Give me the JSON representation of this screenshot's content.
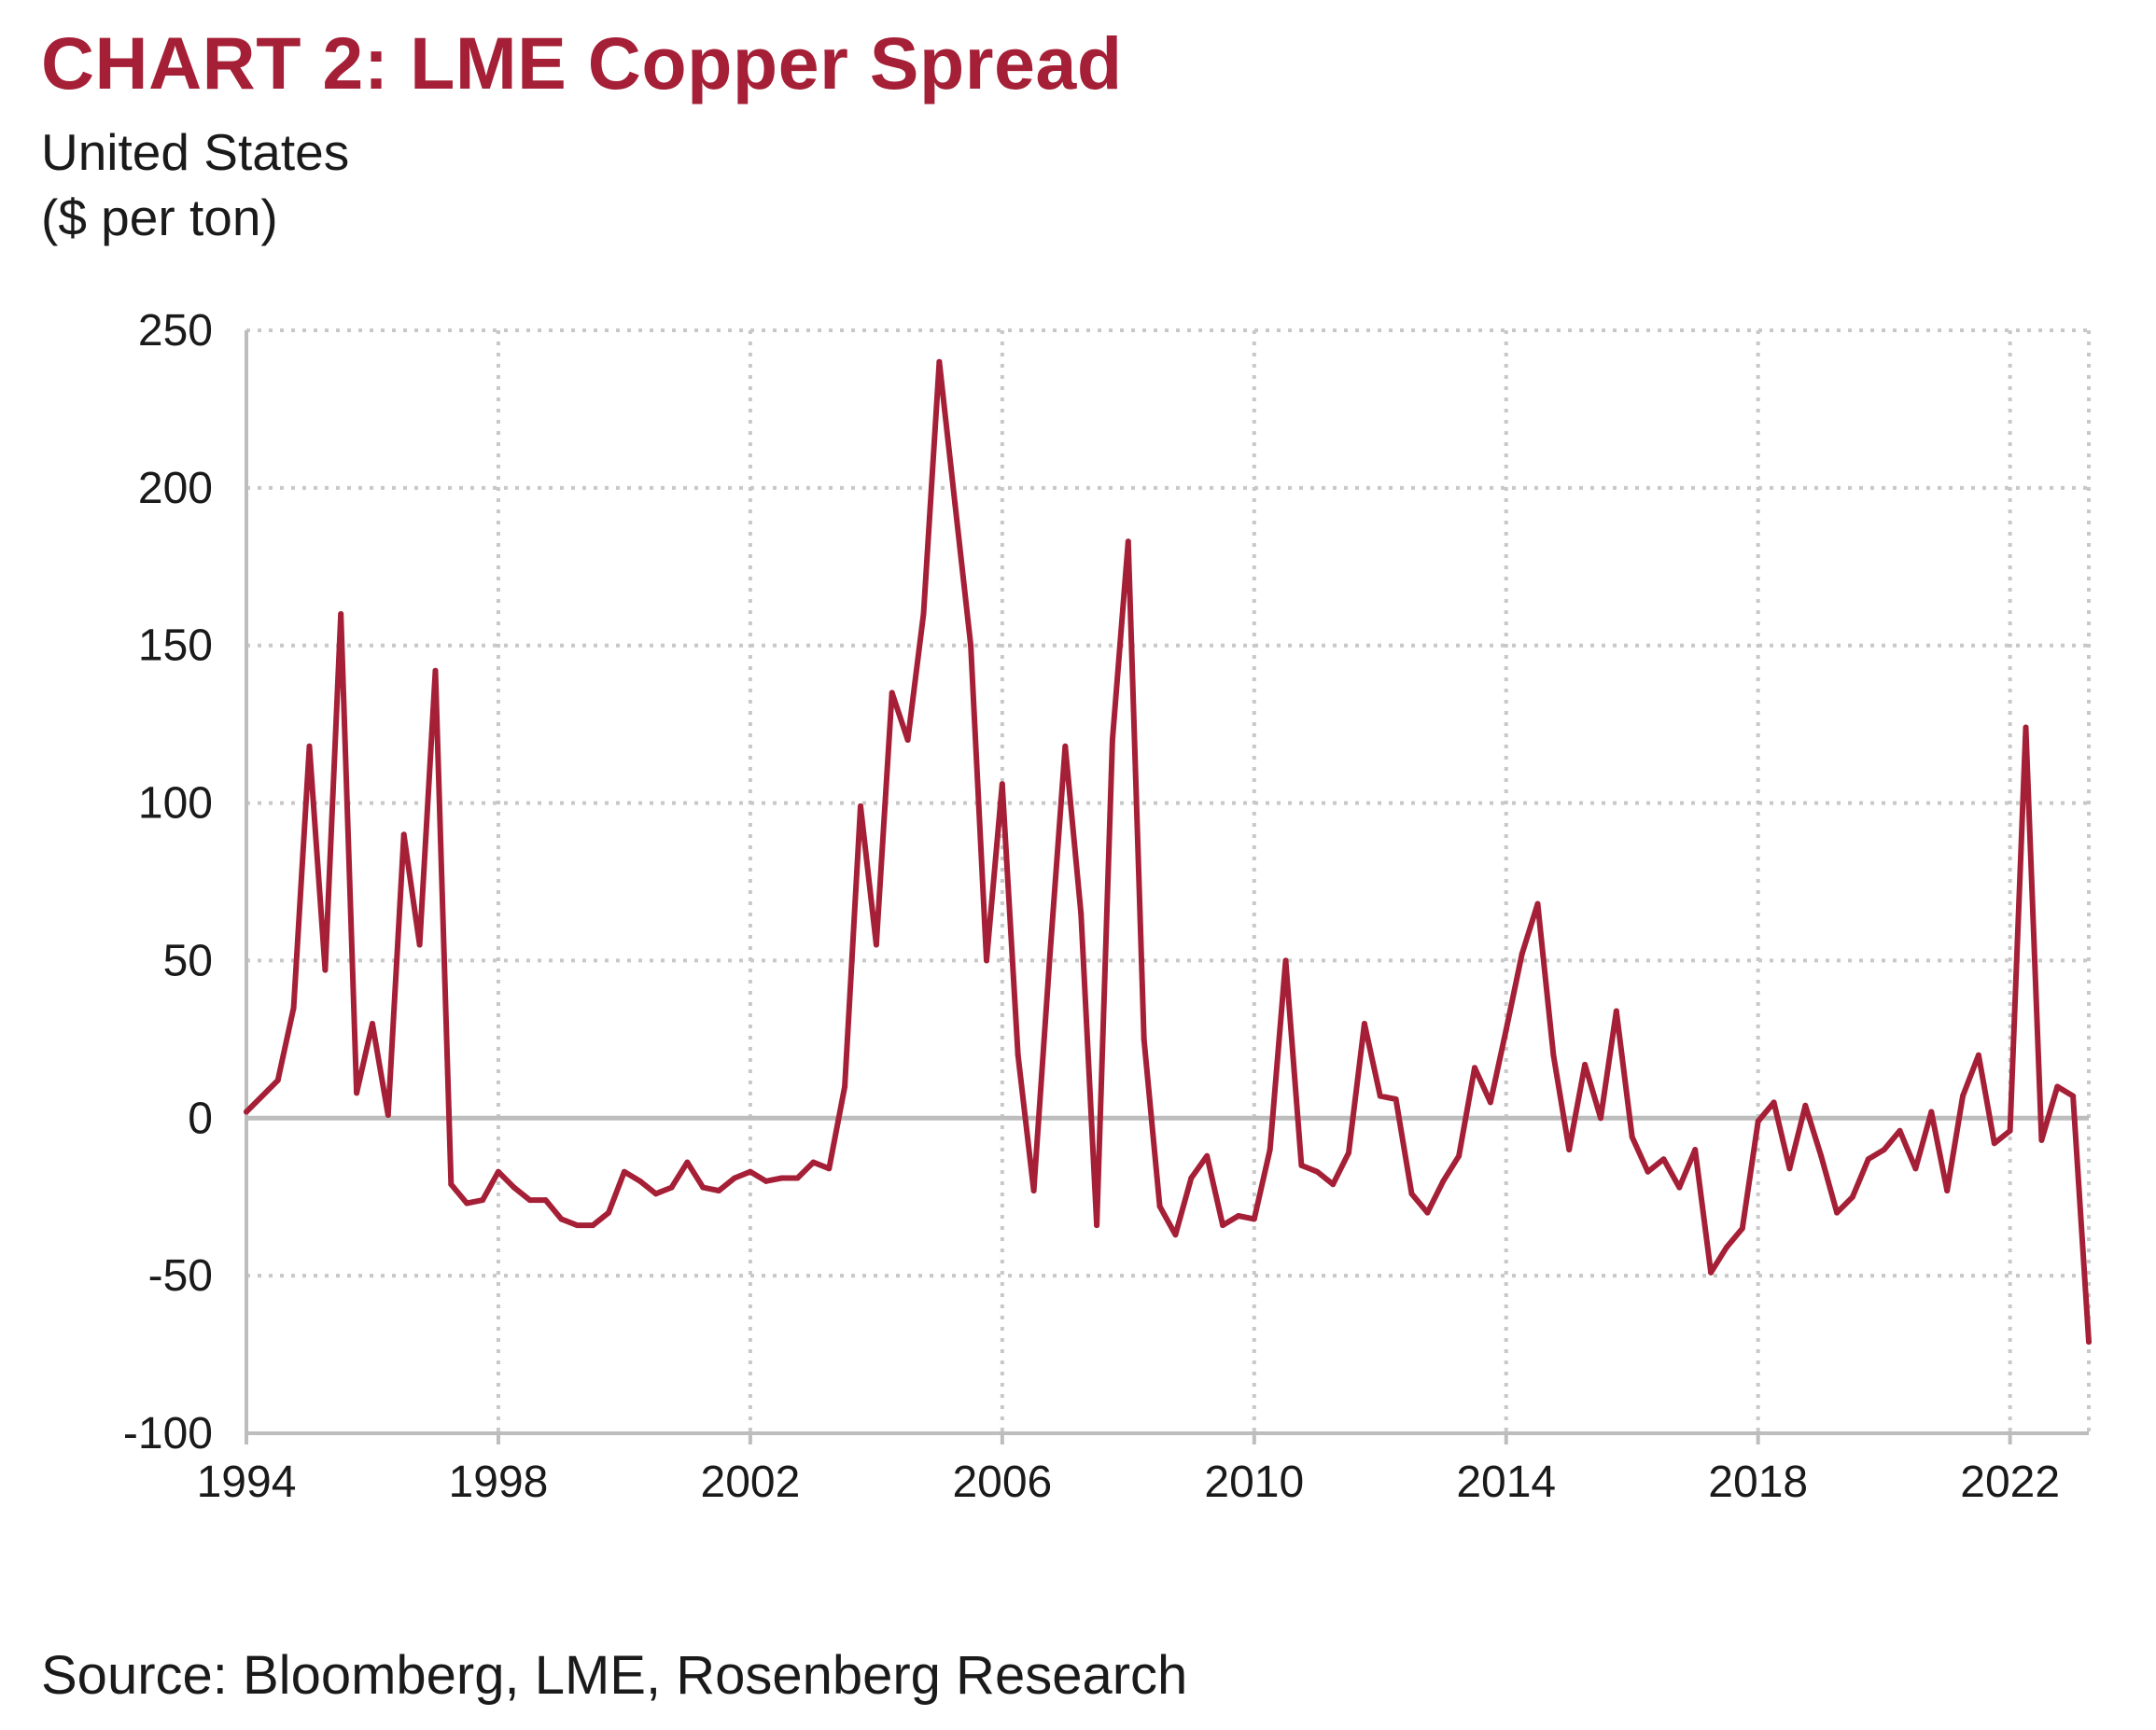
{
  "colors": {
    "title": "#a51f36",
    "line": "#a51f36",
    "grid": "#c8c8c8",
    "axis": "#bdbdbd"
  },
  "chart_data": {
    "type": "line",
    "title": "CHART 2: LME Copper Spread",
    "subtitle_lines": [
      "United States",
      "($ per ton)"
    ],
    "source": "Source: Bloomberg, LME, Rosenberg Research",
    "xlabel": "",
    "ylabel": "",
    "xlim": [
      1994,
      2023.25
    ],
    "ylim": [
      -100,
      250
    ],
    "x_ticks": [
      "1994",
      "1998",
      "2002",
      "2006",
      "2010",
      "2014",
      "2018",
      "2022"
    ],
    "y_ticks": [
      "250",
      "200",
      "150",
      "100",
      "50",
      "0",
      "-50",
      "-100"
    ],
    "grid": true,
    "legend": "none",
    "series": [
      {
        "name": "",
        "x": [
          1994.0,
          1994.25,
          1994.5,
          1994.75,
          1995.0,
          1995.25,
          1995.5,
          1995.75,
          1996.0,
          1996.25,
          1996.5,
          1996.75,
          1997.0,
          1997.25,
          1997.5,
          1997.75,
          1998.0,
          1998.25,
          1998.5,
          1998.75,
          1999.0,
          1999.25,
          1999.5,
          1999.75,
          2000.0,
          2000.25,
          2000.5,
          2000.75,
          2001.0,
          2001.25,
          2001.5,
          2001.75,
          2002.0,
          2002.25,
          2002.5,
          2002.75,
          2003.0,
          2003.25,
          2003.5,
          2003.75,
          2004.0,
          2004.25,
          2004.5,
          2004.75,
          2005.0,
          2005.25,
          2005.5,
          2005.75,
          2006.0,
          2006.25,
          2006.5,
          2006.75,
          2007.0,
          2007.25,
          2007.5,
          2007.75,
          2008.0,
          2008.25,
          2008.5,
          2008.75,
          2009.0,
          2009.25,
          2009.5,
          2009.75,
          2010.0,
          2010.25,
          2010.5,
          2010.75,
          2011.0,
          2011.25,
          2011.5,
          2011.75,
          2012.0,
          2012.25,
          2012.5,
          2012.75,
          2013.0,
          2013.25,
          2013.5,
          2013.75,
          2014.0,
          2014.25,
          2014.5,
          2014.75,
          2015.0,
          2015.25,
          2015.5,
          2015.75,
          2016.0,
          2016.25,
          2016.5,
          2016.75,
          2017.0,
          2017.25,
          2017.5,
          2017.75,
          2018.0,
          2018.25,
          2018.5,
          2018.75,
          2019.0,
          2019.25,
          2019.5,
          2019.75,
          2020.0,
          2020.25,
          2020.5,
          2020.75,
          2021.0,
          2021.25,
          2021.5,
          2021.75,
          2022.0,
          2022.25,
          2022.5,
          2022.75,
          2023.0,
          2023.25
        ],
        "values": [
          2,
          7,
          12,
          35,
          118,
          47,
          160,
          8,
          30,
          1,
          90,
          55,
          142,
          -21,
          -27,
          -26,
          -17,
          -22,
          -26,
          -26,
          -32,
          -34,
          -34,
          -30,
          -17,
          -20,
          -24,
          -22,
          -14,
          -22,
          -23,
          -19,
          -17,
          -20,
          -19,
          -19,
          -14,
          -16,
          10,
          99,
          55,
          135,
          120,
          160,
          240,
          195,
          150,
          50,
          106,
          20,
          -23,
          50,
          118,
          65,
          -34,
          120,
          183,
          25,
          -28,
          -37,
          -19,
          -12,
          -34,
          -31,
          -32,
          -10,
          50,
          -15,
          -17,
          -21,
          -11,
          30,
          7,
          6,
          -24,
          -30,
          -20,
          -12,
          16,
          5,
          28,
          52,
          68,
          20,
          -10,
          17,
          0,
          34,
          -6,
          -17,
          -13,
          -22,
          -10,
          -49,
          -41,
          -35,
          -1,
          5,
          -16,
          4,
          -12,
          -30,
          -25,
          -13,
          -10,
          -4,
          -16,
          2,
          -23,
          7,
          20,
          -8,
          -4,
          124,
          -7,
          10,
          7,
          -71
        ]
      }
    ]
  }
}
